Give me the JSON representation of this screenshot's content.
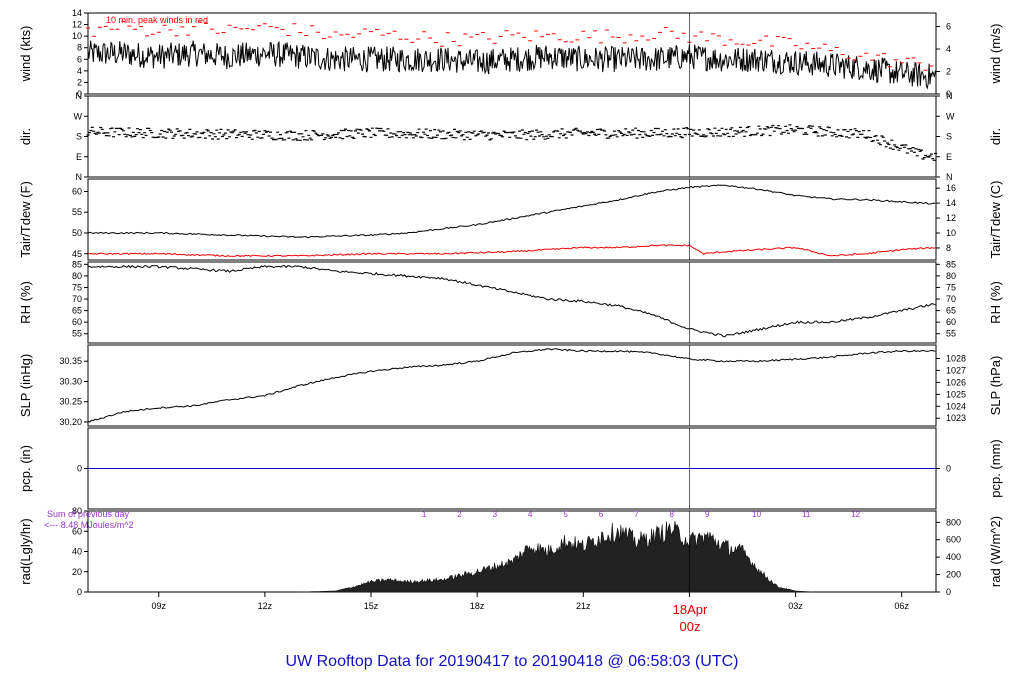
{
  "title": "UW Rooftop Data for 20190417  to  20190418 @ 06:58:03  (UTC)",
  "colors": {
    "title": "#1010c0",
    "peak": "#ff0000",
    "tdew": "#ee0000",
    "pcp": "#0000cc",
    "annotation": "#9933cc",
    "date": "#dd0000",
    "line": "#000000"
  },
  "x_axis": {
    "unit": "UTC hour",
    "range_hours": [
      7.0,
      30.97
    ],
    "ticks": [
      {
        "h": 9,
        "label": "09z"
      },
      {
        "h": 12,
        "label": "12z"
      },
      {
        "h": 15,
        "label": "15z"
      },
      {
        "h": 18,
        "label": "18z"
      },
      {
        "h": 21,
        "label": "21z"
      },
      {
        "h": 24,
        "label": "00z"
      },
      {
        "h": 27,
        "label": "03z"
      },
      {
        "h": 30,
        "label": "06z"
      }
    ],
    "date_label": "18Apr",
    "date_sub": "00z"
  },
  "panels": {
    "wind": {
      "left_label": "wind (kts)",
      "right_label": "wind (m/s)",
      "left_ticks": [
        "0",
        "2",
        "4",
        "6",
        "8",
        "10",
        "12",
        "14"
      ],
      "right_ticks": [
        "0",
        "2",
        "4",
        "6"
      ],
      "annotation": "10 min. peak winds in red"
    },
    "dir": {
      "left_label": "dir.",
      "right_label": "dir.",
      "ticks": [
        "N",
        "E",
        "S",
        "W",
        "N"
      ]
    },
    "temp": {
      "left_label": "Tair/Tdew (F)",
      "right_label": "Tair/Tdew (C)",
      "left_ticks": [
        "45",
        "50",
        "55",
        "60"
      ],
      "right_ticks": [
        "8",
        "10",
        "12",
        "14",
        "16"
      ]
    },
    "rh": {
      "left_label": "RH (%)",
      "right_label": "RH (%)",
      "ticks": [
        "55",
        "60",
        "65",
        "70",
        "75",
        "80",
        "85"
      ]
    },
    "slp": {
      "left_label": "SLP (inHg)",
      "right_label": "SLP (hPa)",
      "left_ticks": [
        "30.20",
        "30.25",
        "30.30",
        "30.35"
      ],
      "right_ticks": [
        "1023",
        "1024",
        "1025",
        "1026",
        "1027",
        "1028"
      ]
    },
    "pcp": {
      "left_label": "pcp. (in)",
      "right_label": "pcp. (mm)",
      "left_ticks": [
        "0"
      ],
      "right_ticks": [
        "0"
      ]
    },
    "rad": {
      "left_label": "rad(Lgly/hr)",
      "right_label": "rad (W/m^2)",
      "left_ticks": [
        "0",
        "20",
        "40",
        "60",
        "80"
      ],
      "right_ticks": [
        "0",
        "200",
        "400",
        "600",
        "800"
      ],
      "sum_line1": "Sum of previous day",
      "sum_line2": "<--- 8.48 MJoules/m^2",
      "hour_labels": [
        "1",
        "2",
        "3",
        "4",
        "5",
        "6",
        "7",
        "8",
        "9",
        "10",
        "11",
        "12"
      ]
    }
  },
  "chart_data": [
    {
      "type": "line",
      "panel": "wind",
      "ylabel": "wind (kts)",
      "ylim": [
        0,
        14
      ],
      "series": [
        {
          "x": [
            7,
            8,
            9,
            10,
            11,
            12,
            13,
            14,
            15,
            16,
            17,
            18,
            19,
            20,
            21,
            22,
            23,
            24,
            25,
            26,
            27,
            28,
            29,
            30,
            30.97
          ],
          "values": [
            7,
            7,
            6.5,
            7,
            6.5,
            7,
            6.5,
            6,
            6,
            6,
            6,
            5.5,
            6,
            6.5,
            6,
            6,
            6,
            6.5,
            6,
            6,
            5.5,
            5,
            4.5,
            3.5,
            3
          ]
        },
        {
          "name": "10 min. peak winds in red",
          "x": [
            7,
            8,
            9,
            10,
            11,
            12,
            13,
            14,
            15,
            16,
            17,
            18,
            19,
            20,
            21,
            22,
            23,
            24,
            25,
            26,
            27,
            28,
            29,
            30,
            30.97
          ],
          "values": [
            11,
            11.5,
            11,
            11.5,
            11,
            11.5,
            11,
            10,
            10.5,
            10,
            9.5,
            9.5,
            10,
            10,
            10,
            10,
            10.5,
            10,
            9.5,
            9,
            8.5,
            7.5,
            6.5,
            5.5,
            5
          ]
        }
      ]
    },
    {
      "type": "scatter",
      "panel": "dir",
      "ylabel": "dir.",
      "ylim": [
        0,
        360
      ],
      "series": [
        {
          "x": [
            7,
            9,
            11,
            13,
            15,
            17,
            19,
            21,
            23,
            25,
            27,
            28,
            29,
            29.5,
            30,
            30.5,
            30.97
          ],
          "values": [
            200,
            195,
            190,
            185,
            195,
            190,
            185,
            195,
            195,
            200,
            210,
            200,
            190,
            160,
            130,
            100,
            90
          ]
        }
      ]
    },
    {
      "type": "line",
      "panel": "temp",
      "ylabel": "Tair/Tdew (F)",
      "ylim": [
        43.5,
        63
      ],
      "series": [
        {
          "x": [
            7,
            9,
            11,
            13,
            15,
            16,
            17,
            18,
            19,
            20,
            21,
            22,
            23,
            24,
            25,
            26,
            27,
            28,
            29,
            30,
            30.97
          ],
          "values": [
            50,
            50,
            49.5,
            49,
            49.5,
            50,
            51,
            52,
            53.5,
            55,
            56.5,
            58,
            59.8,
            61,
            61.5,
            60.5,
            59,
            58.2,
            58,
            57.5,
            57
          ]
        },
        {
          "x": [
            7,
            9,
            11,
            13,
            15,
            17,
            19,
            20,
            21,
            22,
            23,
            24,
            24.4,
            25,
            26,
            27,
            28,
            29,
            30,
            30.97
          ],
          "values": [
            45,
            45,
            44.5,
            44.5,
            45,
            45,
            45.5,
            46,
            46.5,
            46.5,
            47,
            47,
            45,
            45.5,
            46,
            46.5,
            44.5,
            45,
            46,
            46.5
          ]
        }
      ]
    },
    {
      "type": "line",
      "panel": "rh",
      "ylabel": "RH (%)",
      "ylim": [
        51,
        86
      ],
      "series": [
        {
          "x": [
            7,
            9,
            10,
            11,
            12,
            13,
            14,
            15,
            16,
            17,
            18,
            19,
            20,
            21,
            22,
            23,
            24,
            25,
            26,
            27,
            28,
            29,
            30,
            30.97
          ],
          "values": [
            84,
            84,
            83,
            82,
            84,
            84,
            82,
            81,
            80,
            79,
            76,
            73,
            70,
            69,
            67,
            63,
            57,
            54,
            57,
            60,
            60,
            62,
            65,
            68
          ]
        }
      ]
    },
    {
      "type": "line",
      "panel": "slp",
      "ylabel": "SLP (inHg)",
      "ylim": [
        30.19,
        30.39
      ],
      "series": [
        {
          "x": [
            7,
            8,
            9,
            10,
            11,
            12,
            13,
            14,
            15,
            16,
            17,
            18,
            19,
            20,
            21,
            22,
            23,
            24,
            25,
            26,
            27,
            28,
            29,
            30,
            30.97
          ],
          "values": [
            30.2,
            30.225,
            30.235,
            30.24,
            30.255,
            30.265,
            30.29,
            30.31,
            30.325,
            30.335,
            30.34,
            30.35,
            30.37,
            30.38,
            30.375,
            30.375,
            30.37,
            30.355,
            30.35,
            30.35,
            30.355,
            30.36,
            30.37,
            30.375,
            30.375
          ]
        }
      ]
    },
    {
      "type": "line",
      "panel": "pcp",
      "ylabel": "pcp. (in)",
      "ylim": [
        -1,
        1
      ],
      "series": [
        {
          "x": [
            7,
            30.97
          ],
          "values": [
            0,
            0
          ]
        }
      ]
    },
    {
      "type": "area",
      "panel": "rad",
      "ylabel": "rad(Lgly/hr)",
      "ylim": [
        0,
        80
      ],
      "series": [
        {
          "x": [
            13,
            14,
            14.5,
            15,
            15.5,
            16,
            17,
            18,
            18.5,
            19,
            19.5,
            20,
            20.5,
            21,
            21.5,
            22,
            22.5,
            23,
            23.5,
            24,
            24.5,
            25,
            25.5,
            26,
            26.5,
            27,
            27.5
          ],
          "values": [
            0,
            1,
            5,
            10,
            12,
            10,
            12,
            20,
            25,
            30,
            45,
            40,
            50,
            45,
            55,
            60,
            50,
            55,
            62,
            50,
            55,
            45,
            40,
            20,
            5,
            1,
            0
          ]
        }
      ]
    }
  ]
}
